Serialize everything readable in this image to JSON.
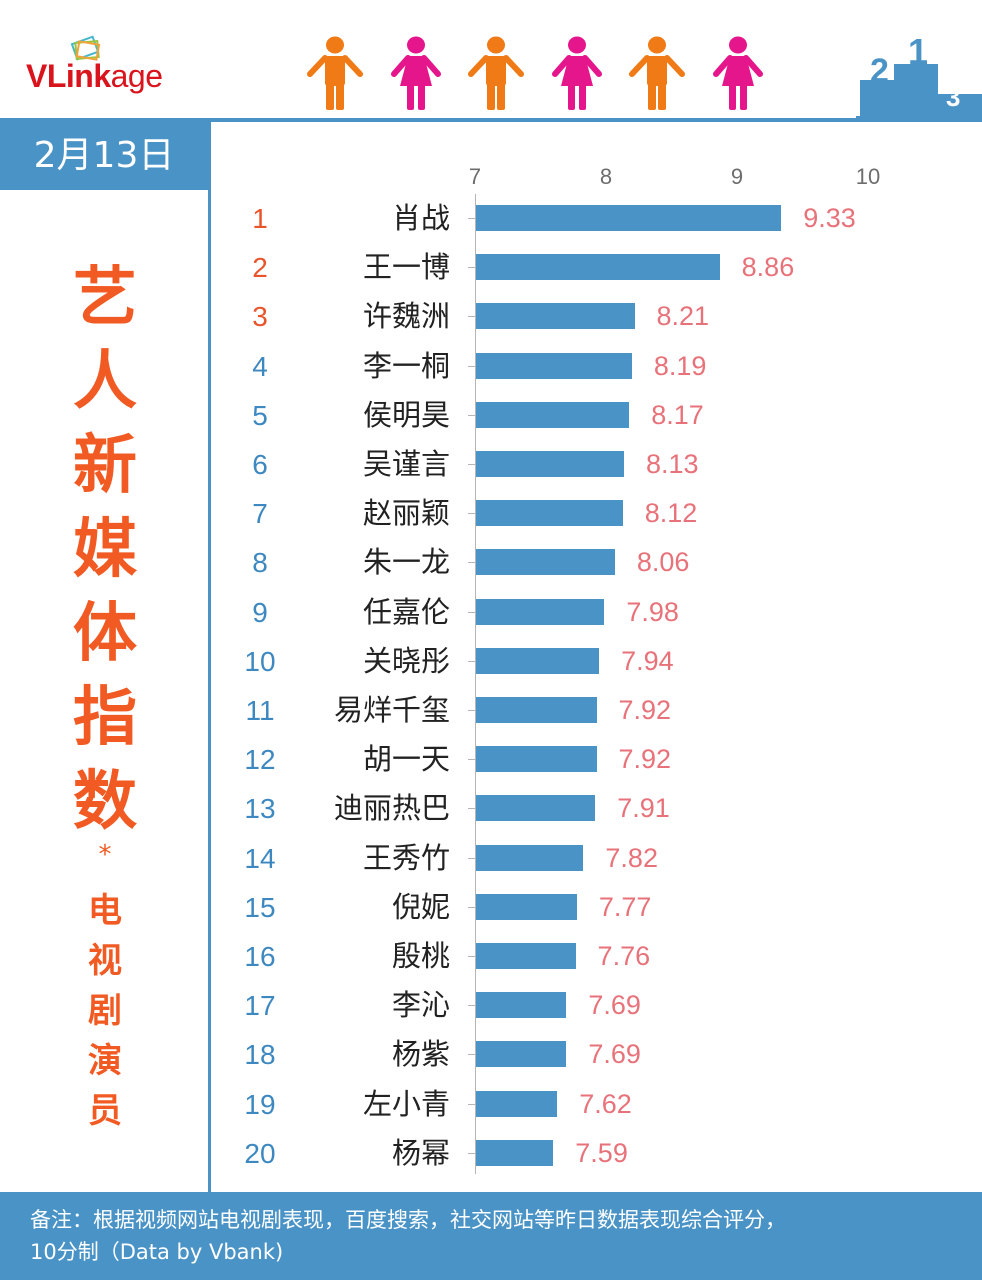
{
  "header": {
    "logo_text_bold": "VLink",
    "logo_text_light": "age",
    "figures": [
      {
        "type": "male",
        "color": "#ef7a16"
      },
      {
        "type": "female",
        "color": "#e5168c"
      },
      {
        "type": "male",
        "color": "#ef7a16"
      },
      {
        "type": "female",
        "color": "#e5168c"
      },
      {
        "type": "male",
        "color": "#ef7a16"
      },
      {
        "type": "female",
        "color": "#e5168c"
      }
    ],
    "podium_labels": [
      "2",
      "1",
      "3"
    ]
  },
  "sidebar": {
    "date": "2月13日",
    "title_chars": [
      "艺",
      "人",
      "新",
      "媒",
      "体",
      "指",
      "数"
    ],
    "star": "*",
    "subtitle_chars": [
      "电",
      "视",
      "剧",
      "演",
      "员"
    ]
  },
  "colors": {
    "brand_blue": "#4a93c6",
    "title_orange": "#f15a22",
    "rank_top3": "#e9542b",
    "rank_other": "#3d88c0",
    "value_label": "#e8727a",
    "bar": "#4a93c6"
  },
  "chart_data": {
    "type": "bar",
    "orientation": "horizontal",
    "title": "艺人新媒体指数 * 电视剧演员",
    "subtitle": "2月13日",
    "xlabel": "",
    "ylabel": "",
    "xlim": [
      7,
      10
    ],
    "x_ticks": [
      "7",
      "8",
      "9",
      "10"
    ],
    "grid": false,
    "legend": null,
    "ranks": [
      1,
      2,
      3,
      4,
      5,
      6,
      7,
      8,
      9,
      10,
      11,
      12,
      13,
      14,
      15,
      16,
      17,
      18,
      19,
      20
    ],
    "categories": [
      "肖战",
      "王一博",
      "许魏洲",
      "李一桐",
      "侯明昊",
      "吴谨言",
      "赵丽颖",
      "朱一龙",
      "任嘉伦",
      "关晓彤",
      "易烊千玺",
      "胡一天",
      "迪丽热巴",
      "王秀竹",
      "倪妮",
      "殷桃",
      "李沁",
      "杨紫",
      "左小青",
      "杨幂"
    ],
    "values": [
      9.33,
      8.86,
      8.21,
      8.19,
      8.17,
      8.13,
      8.12,
      8.06,
      7.98,
      7.94,
      7.92,
      7.92,
      7.91,
      7.82,
      7.77,
      7.76,
      7.69,
      7.69,
      7.62,
      7.59
    ],
    "value_labels": [
      "9.33",
      "8.86",
      "8.21",
      "8.19",
      "8.17",
      "8.13",
      "8.12",
      "8.06",
      "7.98",
      "7.94",
      "7.92",
      "7.92",
      "7.91",
      "7.82",
      "7.77",
      "7.76",
      "7.69",
      "7.69",
      "7.62",
      "7.59"
    ]
  },
  "footer": {
    "note_line1": "备注：根据视频网站电视剧表现，百度搜索，社交网站等昨日数据表现综合评分，",
    "note_line2": "10分制（Data by Vbank)"
  }
}
